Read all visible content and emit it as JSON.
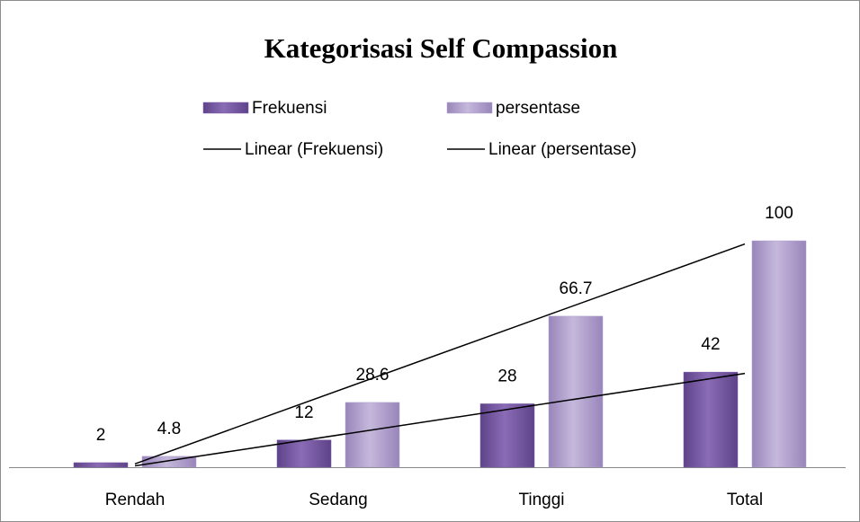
{
  "chart_data": {
    "type": "bar",
    "title": "Kategorisasi Self Compassion",
    "categories": [
      "Rendah",
      "Sedang",
      "Tinggi",
      "Total"
    ],
    "series": [
      {
        "name": "Frekuensi",
        "color": "#7a5ca6",
        "values": [
          2,
          12,
          28,
          42
        ],
        "trendline": {
          "type": "linear",
          "name": "Linear (Frekuensi)",
          "color": "#000000"
        }
      },
      {
        "name": "persentase",
        "color": "#b2a1cf",
        "values": [
          4.8,
          28.6,
          66.7,
          100
        ],
        "trendline": {
          "type": "linear",
          "name": "Linear (persentase)",
          "color": "#000000"
        }
      }
    ],
    "legend": "top",
    "grid": false
  }
}
